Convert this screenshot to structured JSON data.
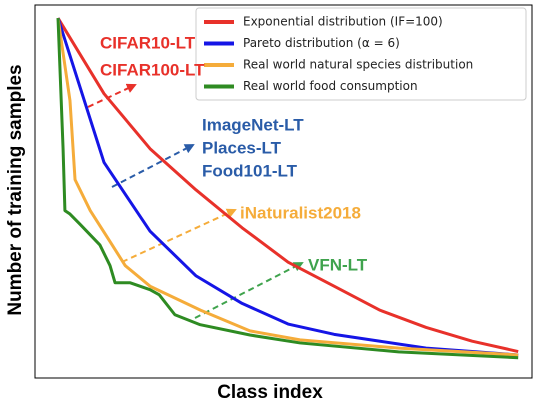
{
  "chart_data": {
    "type": "line",
    "xlabel": "Class index",
    "ylabel": "Number of training samples",
    "xlim": [
      -5,
      103
    ],
    "ylim": [
      -4.7,
      103.8
    ],
    "legend": "upper right",
    "series": [
      {
        "name": "Exponential distribution (IF=100)",
        "color": "#e8312a",
        "x": [
          0,
          10,
          20,
          30,
          40,
          50,
          60,
          70,
          80,
          90,
          100
        ],
        "values": [
          100,
          78,
          62,
          50,
          39,
          29,
          22,
          15,
          10,
          6,
          3
        ]
      },
      {
        "name": "Pareto distribution (α = 6)",
        "color": "#1515e6",
        "x": [
          0,
          10,
          20,
          30,
          40,
          50,
          60,
          70,
          80,
          90,
          100
        ],
        "values": [
          100,
          58,
          38,
          25,
          17,
          11,
          8,
          6,
          4,
          3,
          2
        ]
      },
      {
        "name": "Real world natural species distribution",
        "color": "#f5ac3a",
        "x": [
          0,
          2.6,
          3.7,
          7,
          11.3,
          14.6,
          20,
          31,
          41.7,
          52.6,
          74,
          100
        ],
        "values": [
          100,
          76,
          53,
          44,
          35,
          28,
          22,
          15,
          9,
          6.4,
          4,
          2
        ]
      },
      {
        "name": "Real world food consumption",
        "color": "#2e8b22",
        "x": [
          0,
          1.1,
          1.5,
          2.6,
          4.8,
          9.1,
          11.3,
          12.4,
          15.7,
          20,
          22,
          25.4,
          30.9,
          41.7,
          52.6,
          74,
          100
        ],
        "values": [
          100,
          62,
          44,
          43,
          40,
          34,
          28,
          23,
          23,
          21,
          19.5,
          13.7,
          10.8,
          7.8,
          5.5,
          2.9,
          1.2
        ]
      }
    ],
    "annotations": [
      {
        "text": "CIFAR10-LT",
        "color": "#e8312a"
      },
      {
        "text": "CIFAR100-LT",
        "color": "#e8312a"
      },
      {
        "text": "ImageNet-LT",
        "color": "#2a5ca8"
      },
      {
        "text": "Places-LT",
        "color": "#2a5ca8"
      },
      {
        "text": "Food101-LT",
        "color": "#2a5ca8"
      },
      {
        "text": "iNaturalist2018",
        "color": "#f5ac3a"
      },
      {
        "text": "VFN-LT",
        "color": "#3fa34d"
      }
    ]
  }
}
